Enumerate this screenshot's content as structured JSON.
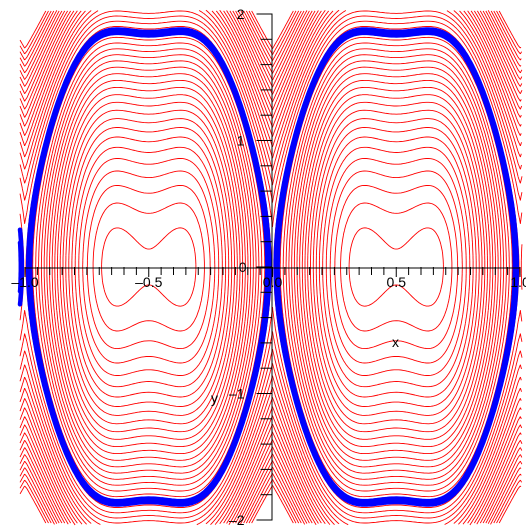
{
  "chart_data": {
    "type": "line",
    "title": "",
    "xlabel": "x",
    "ylabel": "y",
    "xlim": [
      -1.0,
      1.0
    ],
    "ylim": [
      -2,
      2
    ],
    "x_ticks": [
      {
        "value": -1.0,
        "label": "–1.0"
      },
      {
        "value": -0.5,
        "label": "–0.5"
      },
      {
        "value": 0,
        "label": "0.0"
      },
      {
        "value": 0.5,
        "label": "0.5"
      },
      {
        "value": 1.0,
        "label": "1.0"
      }
    ],
    "y_ticks": [
      {
        "value": 2,
        "label": "2"
      },
      {
        "value": 1,
        "label": "1"
      },
      {
        "value": 0,
        "label": "0"
      },
      {
        "value": -1,
        "label": "–1"
      },
      {
        "value": -2,
        "label": "–2"
      }
    ],
    "grid": false,
    "series": [
      {
        "kind": "contour-family",
        "color": "#ff0000",
        "description_levels": "closed level curves around centers at x=±0.66, ±0.34, y=0; outer curves wavy and open"
      },
      {
        "kind": "highlighted-orbit",
        "color": "#0000ff",
        "level": 1.95
      }
    ]
  }
}
